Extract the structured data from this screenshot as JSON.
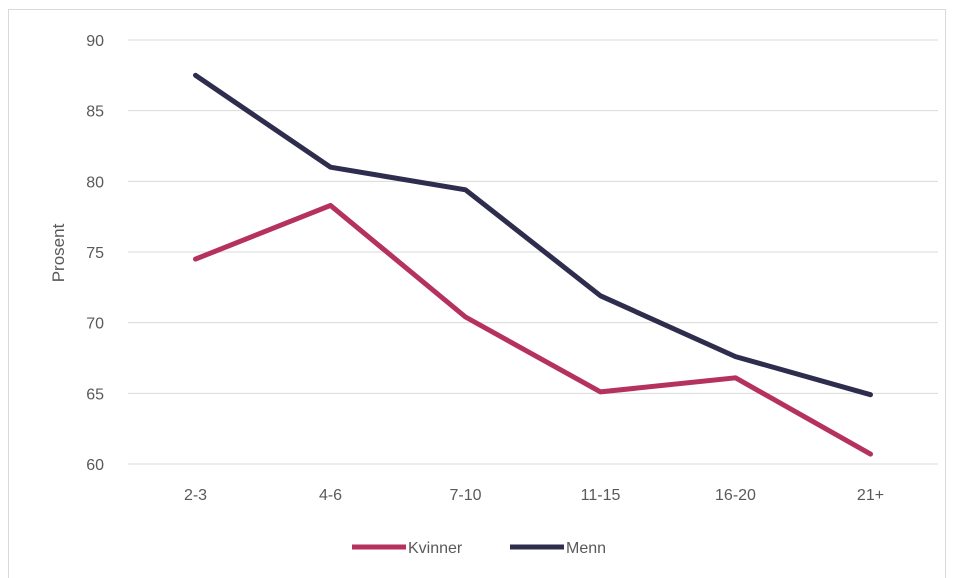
{
  "chart_data": {
    "type": "line",
    "categories": [
      "2-3",
      "4-6",
      "7-10",
      "11-15",
      "16-20",
      "21+"
    ],
    "series": [
      {
        "name": "Kvinner",
        "color": "#b5315f",
        "values": [
          74.5,
          78.3,
          70.4,
          65.1,
          66.1,
          60.7
        ]
      },
      {
        "name": "Menn",
        "color": "#2e2d4e",
        "values": [
          87.5,
          81.0,
          79.4,
          71.9,
          67.6,
          64.9
        ]
      }
    ],
    "ylabel": "Prosent",
    "ylim": [
      60,
      90
    ],
    "yticks": [
      60,
      65,
      70,
      75,
      80,
      85,
      90
    ],
    "grid": true,
    "legend_position": "bottom"
  }
}
